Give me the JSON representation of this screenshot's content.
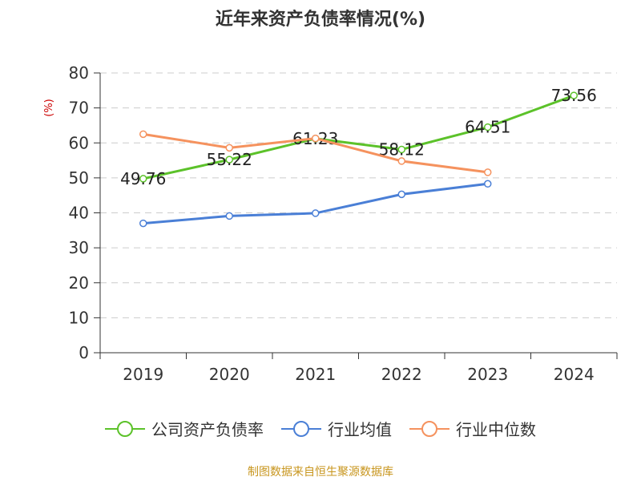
{
  "chart_data": {
    "type": "line",
    "title": "近年来资产负债率情况(%)",
    "ylabel": "(%)",
    "xlabel": "",
    "categories": [
      "2019",
      "2020",
      "2021",
      "2022",
      "2023",
      "2024"
    ],
    "ylim": [
      0,
      80
    ],
    "yticks": [
      0,
      10,
      20,
      30,
      40,
      50,
      60,
      70,
      80
    ],
    "grid": true,
    "legend_position": "bottom",
    "series": [
      {
        "name": "公司资产负债率",
        "color": "#5cc22a",
        "values": [
          49.76,
          55.22,
          61.23,
          58.12,
          64.51,
          73.56
        ],
        "labels": [
          "49.76",
          "55.22",
          "61.23",
          "58.12",
          "64.51",
          "73.56"
        ],
        "show_labels": true
      },
      {
        "name": "行业均值",
        "color": "#4a7fd6",
        "values": [
          37.0,
          39.1,
          39.9,
          45.3,
          48.3,
          null
        ],
        "show_labels": false
      },
      {
        "name": "行业中位数",
        "color": "#f5925e",
        "values": [
          62.5,
          58.6,
          61.3,
          54.8,
          51.6,
          null
        ],
        "show_labels": false
      }
    ]
  },
  "footer": {
    "source": "制图数据来自恒生聚源数据库"
  }
}
